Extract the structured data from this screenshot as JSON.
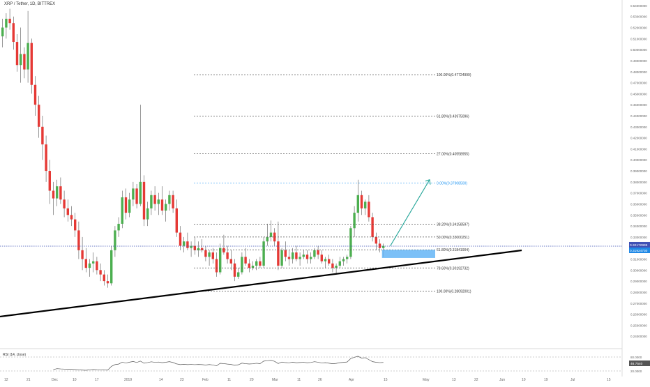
{
  "header": {
    "symbol_title": "XRP / Tether, 1D, BITTREX"
  },
  "colors": {
    "up": "#4caf50",
    "down": "#e53935",
    "wick": "#555555",
    "trendline": "#000000",
    "fib": "#555555",
    "fib_highlight": "#2196f3",
    "price_line": "#3f51b5",
    "projection_arrow": "#26a69a",
    "target_box": "#64b5f6",
    "rsi_line": "#555555",
    "fib_61_8": "#e53935"
  },
  "price_axis": {
    "min": 0.23,
    "max": 0.545,
    "tick_labels": [
      "0.54000000",
      "0.53000000",
      "0.52000000",
      "0.51000000",
      "0.50000000",
      "0.49000000",
      "0.48000000",
      "0.47000000",
      "0.46000000",
      "0.45000000",
      "0.44000000",
      "0.43000000",
      "0.42000000",
      "0.41000000",
      "0.40000000",
      "0.39000000",
      "0.38000000",
      "0.37000000",
      "0.36000000",
      "0.35000000",
      "0.34000000",
      "0.33000000",
      "0.32000000",
      "0.31000000",
      "0.30000000",
      "0.29000000",
      "0.28000000",
      "0.27000000",
      "0.26000000",
      "0.25000000",
      "0.24000000"
    ],
    "current_price_label": "0.32172999",
    "secondary_label": "0.31924730"
  },
  "time_axis": {
    "labels": [
      "12",
      "21",
      "Dec",
      "10",
      "17",
      "2019",
      "14",
      "23",
      "Feb",
      "11",
      "20",
      "Mar",
      "11",
      "26",
      "Apr",
      "15",
      "May",
      "13",
      "22",
      "Jun",
      "10",
      "19",
      "Jul",
      "15"
    ]
  },
  "fib_upper": [
    {
      "label": "100.00%(0.47724999)",
      "price": 0.47725
    },
    {
      "label": "61.80%(0.43975096)",
      "price": 0.43975
    },
    {
      "label": "27.00%(0.40558955)",
      "price": 0.40559
    },
    {
      "label": "0.00%(0.37908500)",
      "price": 0.379085
    }
  ],
  "fib_lower": [
    {
      "label": "38.20%(0.34158597)",
      "price": 0.341586
    },
    {
      "label": "50.00%(0.33000251)",
      "price": 0.330003
    },
    {
      "label": "61.80%(0.31841904)",
      "price": 0.318419
    },
    {
      "label": "78.60%(0.30192732)",
      "price": 0.301927
    },
    {
      "label": "100.00%(0.28092001)",
      "price": 0.28092
    }
  ],
  "rsi": {
    "title": "RSI (14, close)",
    "current_value": "46.7540",
    "levels": [
      "80.0000",
      "20.0000"
    ]
  },
  "chart_data": {
    "type": "candlestick",
    "title": "XRP / Tether, 1D, BITTREX",
    "y_range": [
      0.23,
      0.545
    ],
    "x_labels": [
      "12",
      "21",
      "Dec",
      "10",
      "17",
      "2019",
      "14",
      "23",
      "Feb",
      "11",
      "20",
      "Mar",
      "11",
      "26",
      "Apr",
      "15",
      "May",
      "13",
      "22",
      "Jun",
      "10",
      "19",
      "Jul",
      "15"
    ],
    "ohlc": [
      [
        0.512,
        0.528,
        0.502,
        0.52
      ],
      [
        0.52,
        0.533,
        0.51,
        0.528
      ],
      [
        0.528,
        0.537,
        0.518,
        0.524
      ],
      [
        0.524,
        0.53,
        0.5,
        0.507
      ],
      [
        0.507,
        0.514,
        0.48,
        0.486
      ],
      [
        0.486,
        0.52,
        0.47,
        0.496
      ],
      [
        0.496,
        0.502,
        0.474,
        0.482
      ],
      [
        0.482,
        0.535,
        0.47,
        0.506
      ],
      [
        0.506,
        0.51,
        0.46,
        0.468
      ],
      [
        0.468,
        0.476,
        0.44,
        0.45
      ],
      [
        0.45,
        0.458,
        0.42,
        0.43
      ],
      [
        0.43,
        0.44,
        0.4,
        0.414
      ],
      [
        0.414,
        0.422,
        0.38,
        0.39
      ],
      [
        0.39,
        0.4,
        0.36,
        0.372
      ],
      [
        0.372,
        0.38,
        0.35,
        0.365
      ],
      [
        0.365,
        0.382,
        0.358,
        0.376
      ],
      [
        0.376,
        0.384,
        0.36,
        0.364
      ],
      [
        0.364,
        0.372,
        0.348,
        0.356
      ],
      [
        0.356,
        0.364,
        0.344,
        0.35
      ],
      [
        0.35,
        0.358,
        0.34,
        0.346
      ],
      [
        0.346,
        0.352,
        0.33,
        0.336
      ],
      [
        0.336,
        0.344,
        0.31,
        0.318
      ],
      [
        0.318,
        0.33,
        0.3,
        0.31
      ],
      [
        0.31,
        0.32,
        0.298,
        0.302
      ],
      [
        0.302,
        0.31,
        0.294,
        0.306
      ],
      [
        0.306,
        0.316,
        0.298,
        0.308
      ],
      [
        0.308,
        0.312,
        0.296,
        0.3
      ],
      [
        0.3,
        0.306,
        0.29,
        0.296
      ],
      [
        0.296,
        0.3,
        0.286,
        0.29
      ],
      [
        0.29,
        0.296,
        0.284,
        0.288
      ],
      [
        0.288,
        0.322,
        0.286,
        0.318
      ],
      [
        0.318,
        0.34,
        0.312,
        0.336
      ],
      [
        0.336,
        0.348,
        0.33,
        0.342
      ],
      [
        0.342,
        0.372,
        0.338,
        0.366
      ],
      [
        0.366,
        0.374,
        0.346,
        0.352
      ],
      [
        0.352,
        0.37,
        0.348,
        0.364
      ],
      [
        0.364,
        0.38,
        0.358,
        0.374
      ],
      [
        0.374,
        0.378,
        0.356,
        0.36
      ],
      [
        0.36,
        0.45,
        0.358,
        0.38
      ],
      [
        0.38,
        0.386,
        0.34,
        0.346
      ],
      [
        0.346,
        0.362,
        0.34,
        0.356
      ],
      [
        0.356,
        0.372,
        0.35,
        0.368
      ],
      [
        0.368,
        0.376,
        0.354,
        0.36
      ],
      [
        0.36,
        0.37,
        0.35,
        0.364
      ],
      [
        0.364,
        0.376,
        0.35,
        0.354
      ],
      [
        0.354,
        0.364,
        0.344,
        0.36
      ],
      [
        0.36,
        0.372,
        0.354,
        0.368
      ],
      [
        0.368,
        0.372,
        0.352,
        0.356
      ],
      [
        0.356,
        0.364,
        0.33,
        0.334
      ],
      [
        0.334,
        0.34,
        0.318,
        0.322
      ],
      [
        0.322,
        0.33,
        0.316,
        0.326
      ],
      [
        0.326,
        0.334,
        0.318,
        0.32
      ],
      [
        0.32,
        0.326,
        0.312,
        0.322
      ],
      [
        0.322,
        0.33,
        0.314,
        0.318
      ],
      [
        0.318,
        0.326,
        0.312,
        0.32
      ],
      [
        0.32,
        0.328,
        0.316,
        0.318
      ],
      [
        0.318,
        0.322,
        0.308,
        0.312
      ],
      [
        0.312,
        0.318,
        0.304,
        0.316
      ],
      [
        0.316,
        0.32,
        0.306,
        0.31
      ],
      [
        0.31,
        0.316,
        0.294,
        0.298
      ],
      [
        0.298,
        0.324,
        0.296,
        0.32
      ],
      [
        0.32,
        0.332,
        0.314,
        0.316
      ],
      [
        0.316,
        0.322,
        0.306,
        0.31
      ],
      [
        0.31,
        0.318,
        0.3,
        0.306
      ],
      [
        0.306,
        0.31,
        0.29,
        0.294
      ],
      [
        0.294,
        0.302,
        0.292,
        0.298
      ],
      [
        0.298,
        0.316,
        0.296,
        0.312
      ],
      [
        0.312,
        0.32,
        0.304,
        0.306
      ],
      [
        0.306,
        0.31,
        0.298,
        0.302
      ],
      [
        0.302,
        0.308,
        0.3,
        0.304
      ],
      [
        0.304,
        0.31,
        0.3,
        0.308
      ],
      [
        0.308,
        0.312,
        0.302,
        0.304
      ],
      [
        0.304,
        0.33,
        0.302,
        0.326
      ],
      [
        0.326,
        0.342,
        0.322,
        0.33
      ],
      [
        0.33,
        0.345,
        0.326,
        0.334
      ],
      [
        0.334,
        0.338,
        0.322,
        0.326
      ],
      [
        0.326,
        0.344,
        0.3,
        0.304
      ],
      [
        0.304,
        0.32,
        0.302,
        0.318
      ],
      [
        0.318,
        0.326,
        0.308,
        0.312
      ],
      [
        0.312,
        0.318,
        0.304,
        0.31
      ],
      [
        0.31,
        0.32,
        0.306,
        0.316
      ],
      [
        0.316,
        0.322,
        0.308,
        0.31
      ],
      [
        0.31,
        0.316,
        0.304,
        0.312
      ],
      [
        0.312,
        0.318,
        0.31,
        0.314
      ],
      [
        0.314,
        0.318,
        0.306,
        0.31
      ],
      [
        0.31,
        0.316,
        0.306,
        0.312
      ],
      [
        0.312,
        0.32,
        0.31,
        0.318
      ],
      [
        0.318,
        0.322,
        0.31,
        0.314
      ],
      [
        0.314,
        0.318,
        0.306,
        0.308
      ],
      [
        0.308,
        0.312,
        0.302,
        0.31
      ],
      [
        0.31,
        0.314,
        0.304,
        0.306
      ],
      [
        0.306,
        0.31,
        0.298,
        0.302
      ],
      [
        0.302,
        0.306,
        0.296,
        0.304
      ],
      [
        0.304,
        0.312,
        0.302,
        0.308
      ],
      [
        0.308,
        0.312,
        0.304,
        0.31
      ],
      [
        0.31,
        0.314,
        0.306,
        0.312
      ],
      [
        0.312,
        0.34,
        0.31,
        0.338
      ],
      [
        0.338,
        0.358,
        0.33,
        0.352
      ],
      [
        0.352,
        0.382,
        0.344,
        0.368
      ],
      [
        0.368,
        0.372,
        0.35,
        0.356
      ],
      [
        0.356,
        0.364,
        0.35,
        0.362
      ],
      [
        0.362,
        0.368,
        0.344,
        0.348
      ],
      [
        0.348,
        0.352,
        0.326,
        0.33
      ],
      [
        0.33,
        0.334,
        0.318,
        0.324
      ],
      [
        0.324,
        0.328,
        0.316,
        0.32
      ],
      [
        0.32,
        0.324,
        0.312,
        0.322
      ]
    ]
  }
}
